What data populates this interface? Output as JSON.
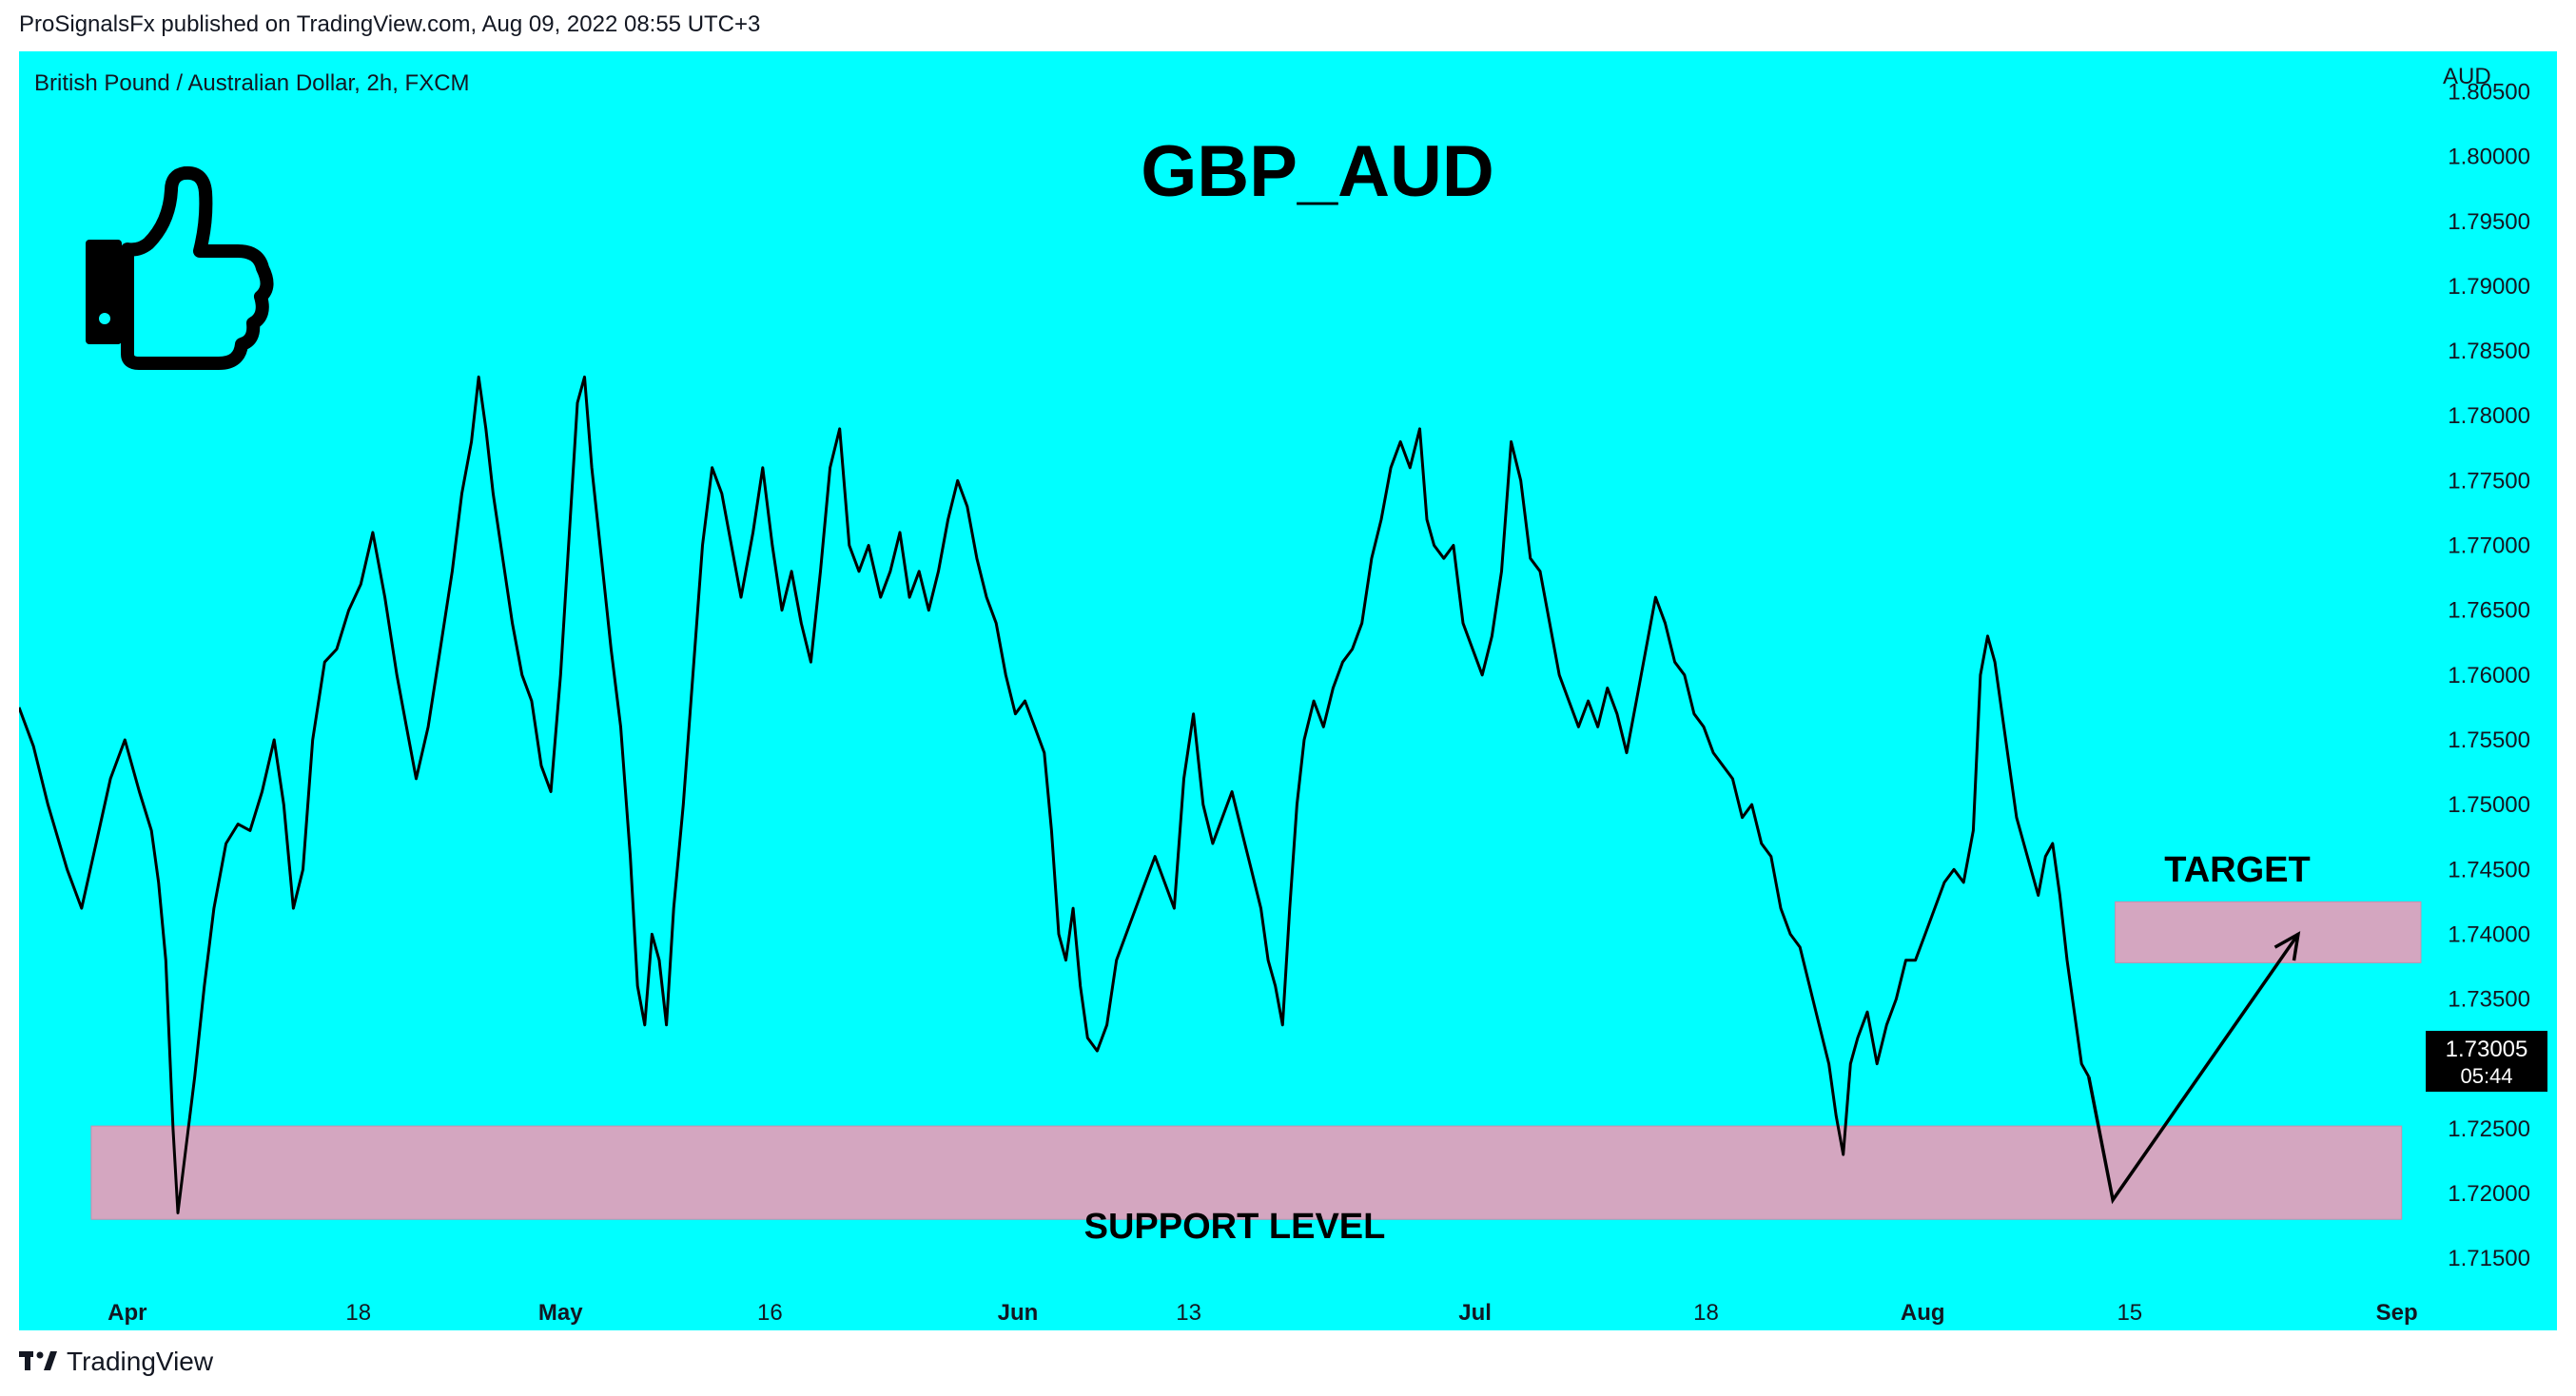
{
  "header": {
    "text": "ProSignalsFx published on TradingView.com, Aug 09, 2022 08:55 UTC+3"
  },
  "footer": {
    "brand": "TradingView",
    "logo_icon": "tradingview-logo-icon"
  },
  "chart_data": {
    "type": "line",
    "symbol_label": "British Pound / Australian Dollar, 2h, FXCM",
    "title": "GBP_AUD",
    "currency": "AUD",
    "ylim": [
      1.712,
      1.8068
    ],
    "y_ticks": [
      "1.80500",
      "1.80000",
      "1.79500",
      "1.79000",
      "1.78500",
      "1.78000",
      "1.77500",
      "1.77000",
      "1.76500",
      "1.76000",
      "1.75500",
      "1.75000",
      "1.74500",
      "1.74000",
      "1.73500",
      "1.73000",
      "1.72500",
      "1.72000",
      "1.71500"
    ],
    "x_ticks": [
      {
        "label": "Apr",
        "t": 0.045,
        "bold": true
      },
      {
        "label": "18",
        "t": 0.141,
        "bold": false
      },
      {
        "label": "May",
        "t": 0.225,
        "bold": true
      },
      {
        "label": "16",
        "t": 0.312,
        "bold": false
      },
      {
        "label": "Jun",
        "t": 0.415,
        "bold": true
      },
      {
        "label": "13",
        "t": 0.486,
        "bold": false
      },
      {
        "label": "Jul",
        "t": 0.605,
        "bold": true
      },
      {
        "label": "18",
        "t": 0.701,
        "bold": false
      },
      {
        "label": "Aug",
        "t": 0.791,
        "bold": true
      },
      {
        "label": "15",
        "t": 0.877,
        "bold": false
      },
      {
        "label": "Sep",
        "t": 0.988,
        "bold": true
      }
    ],
    "price_line": [
      [
        0.0,
        1.7575
      ],
      [
        0.006,
        1.7545
      ],
      [
        0.012,
        1.75
      ],
      [
        0.02,
        1.745
      ],
      [
        0.026,
        1.742
      ],
      [
        0.032,
        1.747
      ],
      [
        0.038,
        1.752
      ],
      [
        0.044,
        1.755
      ],
      [
        0.05,
        1.751
      ],
      [
        0.055,
        1.748
      ],
      [
        0.058,
        1.744
      ],
      [
        0.061,
        1.738
      ],
      [
        0.064,
        1.725
      ],
      [
        0.066,
        1.7185
      ],
      [
        0.069,
        1.723
      ],
      [
        0.073,
        1.729
      ],
      [
        0.077,
        1.736
      ],
      [
        0.081,
        1.742
      ],
      [
        0.086,
        1.747
      ],
      [
        0.091,
        1.7485
      ],
      [
        0.096,
        1.748
      ],
      [
        0.101,
        1.751
      ],
      [
        0.106,
        1.755
      ],
      [
        0.11,
        1.75
      ],
      [
        0.114,
        1.742
      ],
      [
        0.118,
        1.745
      ],
      [
        0.122,
        1.755
      ],
      [
        0.127,
        1.761
      ],
      [
        0.132,
        1.762
      ],
      [
        0.137,
        1.765
      ],
      [
        0.142,
        1.767
      ],
      [
        0.147,
        1.771
      ],
      [
        0.152,
        1.766
      ],
      [
        0.157,
        1.76
      ],
      [
        0.161,
        1.756
      ],
      [
        0.165,
        1.752
      ],
      [
        0.17,
        1.756
      ],
      [
        0.175,
        1.762
      ],
      [
        0.18,
        1.768
      ],
      [
        0.184,
        1.774
      ],
      [
        0.188,
        1.778
      ],
      [
        0.191,
        1.783
      ],
      [
        0.194,
        1.779
      ],
      [
        0.197,
        1.774
      ],
      [
        0.201,
        1.769
      ],
      [
        0.205,
        1.764
      ],
      [
        0.209,
        1.76
      ],
      [
        0.213,
        1.758
      ],
      [
        0.217,
        1.753
      ],
      [
        0.221,
        1.751
      ],
      [
        0.225,
        1.76
      ],
      [
        0.229,
        1.772
      ],
      [
        0.232,
        1.781
      ],
      [
        0.235,
        1.783
      ],
      [
        0.238,
        1.776
      ],
      [
        0.242,
        1.769
      ],
      [
        0.246,
        1.762
      ],
      [
        0.25,
        1.756
      ],
      [
        0.254,
        1.746
      ],
      [
        0.257,
        1.736
      ],
      [
        0.26,
        1.733
      ],
      [
        0.263,
        1.74
      ],
      [
        0.266,
        1.738
      ],
      [
        0.269,
        1.733
      ],
      [
        0.272,
        1.742
      ],
      [
        0.276,
        1.75
      ],
      [
        0.28,
        1.76
      ],
      [
        0.284,
        1.77
      ],
      [
        0.288,
        1.776
      ],
      [
        0.292,
        1.774
      ],
      [
        0.296,
        1.77
      ],
      [
        0.3,
        1.766
      ],
      [
        0.305,
        1.771
      ],
      [
        0.309,
        1.776
      ],
      [
        0.313,
        1.77
      ],
      [
        0.317,
        1.765
      ],
      [
        0.321,
        1.768
      ],
      [
        0.325,
        1.764
      ],
      [
        0.329,
        1.761
      ],
      [
        0.333,
        1.768
      ],
      [
        0.337,
        1.776
      ],
      [
        0.341,
        1.779
      ],
      [
        0.345,
        1.77
      ],
      [
        0.349,
        1.768
      ],
      [
        0.353,
        1.77
      ],
      [
        0.358,
        1.766
      ],
      [
        0.362,
        1.768
      ],
      [
        0.366,
        1.771
      ],
      [
        0.37,
        1.766
      ],
      [
        0.374,
        1.768
      ],
      [
        0.378,
        1.765
      ],
      [
        0.382,
        1.768
      ],
      [
        0.386,
        1.772
      ],
      [
        0.39,
        1.775
      ],
      [
        0.394,
        1.773
      ],
      [
        0.398,
        1.769
      ],
      [
        0.402,
        1.766
      ],
      [
        0.406,
        1.764
      ],
      [
        0.41,
        1.76
      ],
      [
        0.414,
        1.757
      ],
      [
        0.418,
        1.758
      ],
      [
        0.422,
        1.756
      ],
      [
        0.426,
        1.754
      ],
      [
        0.429,
        1.748
      ],
      [
        0.432,
        1.74
      ],
      [
        0.435,
        1.738
      ],
      [
        0.438,
        1.742
      ],
      [
        0.441,
        1.736
      ],
      [
        0.444,
        1.732
      ],
      [
        0.448,
        1.731
      ],
      [
        0.452,
        1.733
      ],
      [
        0.456,
        1.738
      ],
      [
        0.46,
        1.74
      ],
      [
        0.464,
        1.742
      ],
      [
        0.468,
        1.744
      ],
      [
        0.472,
        1.746
      ],
      [
        0.476,
        1.744
      ],
      [
        0.48,
        1.742
      ],
      [
        0.484,
        1.752
      ],
      [
        0.488,
        1.757
      ],
      [
        0.492,
        1.75
      ],
      [
        0.496,
        1.747
      ],
      [
        0.5,
        1.749
      ],
      [
        0.504,
        1.751
      ],
      [
        0.508,
        1.748
      ],
      [
        0.512,
        1.745
      ],
      [
        0.516,
        1.742
      ],
      [
        0.519,
        1.738
      ],
      [
        0.522,
        1.736
      ],
      [
        0.525,
        1.733
      ],
      [
        0.528,
        1.742
      ],
      [
        0.531,
        1.75
      ],
      [
        0.534,
        1.755
      ],
      [
        0.538,
        1.758
      ],
      [
        0.542,
        1.756
      ],
      [
        0.546,
        1.759
      ],
      [
        0.55,
        1.761
      ],
      [
        0.554,
        1.762
      ],
      [
        0.558,
        1.764
      ],
      [
        0.562,
        1.769
      ],
      [
        0.566,
        1.772
      ],
      [
        0.57,
        1.776
      ],
      [
        0.574,
        1.778
      ],
      [
        0.578,
        1.776
      ],
      [
        0.582,
        1.779
      ],
      [
        0.585,
        1.772
      ],
      [
        0.588,
        1.77
      ],
      [
        0.592,
        1.769
      ],
      [
        0.596,
        1.77
      ],
      [
        0.6,
        1.764
      ],
      [
        0.604,
        1.762
      ],
      [
        0.608,
        1.76
      ],
      [
        0.612,
        1.763
      ],
      [
        0.616,
        1.768
      ],
      [
        0.62,
        1.778
      ],
      [
        0.624,
        1.775
      ],
      [
        0.628,
        1.769
      ],
      [
        0.632,
        1.768
      ],
      [
        0.636,
        1.764
      ],
      [
        0.64,
        1.76
      ],
      [
        0.644,
        1.758
      ],
      [
        0.648,
        1.756
      ],
      [
        0.652,
        1.758
      ],
      [
        0.656,
        1.756
      ],
      [
        0.66,
        1.759
      ],
      [
        0.664,
        1.757
      ],
      [
        0.668,
        1.754
      ],
      [
        0.672,
        1.758
      ],
      [
        0.676,
        1.762
      ],
      [
        0.68,
        1.766
      ],
      [
        0.684,
        1.764
      ],
      [
        0.688,
        1.761
      ],
      [
        0.692,
        1.76
      ],
      [
        0.696,
        1.757
      ],
      [
        0.7,
        1.756
      ],
      [
        0.704,
        1.754
      ],
      [
        0.708,
        1.753
      ],
      [
        0.712,
        1.752
      ],
      [
        0.716,
        1.749
      ],
      [
        0.72,
        1.75
      ],
      [
        0.724,
        1.747
      ],
      [
        0.728,
        1.746
      ],
      [
        0.732,
        1.742
      ],
      [
        0.736,
        1.74
      ],
      [
        0.74,
        1.739
      ],
      [
        0.744,
        1.736
      ],
      [
        0.748,
        1.733
      ],
      [
        0.752,
        1.73
      ],
      [
        0.755,
        1.726
      ],
      [
        0.758,
        1.723
      ],
      [
        0.761,
        1.73
      ],
      [
        0.764,
        1.732
      ],
      [
        0.768,
        1.734
      ],
      [
        0.772,
        1.73
      ],
      [
        0.776,
        1.733
      ],
      [
        0.78,
        1.735
      ],
      [
        0.784,
        1.738
      ],
      [
        0.788,
        1.738
      ],
      [
        0.792,
        1.74
      ],
      [
        0.796,
        1.742
      ],
      [
        0.8,
        1.744
      ],
      [
        0.804,
        1.745
      ],
      [
        0.808,
        1.744
      ],
      [
        0.812,
        1.748
      ],
      [
        0.815,
        1.76
      ],
      [
        0.818,
        1.763
      ],
      [
        0.821,
        1.761
      ],
      [
        0.824,
        1.757
      ],
      [
        0.827,
        1.753
      ],
      [
        0.83,
        1.749
      ],
      [
        0.833,
        1.747
      ],
      [
        0.836,
        1.745
      ],
      [
        0.839,
        1.743
      ],
      [
        0.842,
        1.746
      ],
      [
        0.845,
        1.747
      ],
      [
        0.848,
        1.743
      ],
      [
        0.851,
        1.738
      ],
      [
        0.854,
        1.734
      ],
      [
        0.857,
        1.73
      ],
      [
        0.86,
        1.729
      ]
    ],
    "projection_path": [
      [
        0.86,
        1.729
      ],
      [
        0.87,
        1.7195
      ],
      [
        0.947,
        1.74
      ]
    ],
    "support_zone": {
      "label": "SUPPORT LEVEL",
      "y_range": [
        1.718,
        1.7252
      ],
      "t_range": [
        0.03,
        0.99
      ]
    },
    "target_zone": {
      "label": "TARGET",
      "y_range": [
        1.7378,
        1.7425
      ],
      "t_range": [
        0.871,
        0.998
      ]
    },
    "last_price": {
      "value": "1.73005",
      "countdown": "05:44"
    }
  },
  "colors": {
    "background": "#00ffff",
    "zone": "#d4a6c0",
    "line": "#000000",
    "label_bg": "#000000",
    "label_fg": "#ffffff"
  },
  "icons": {
    "thumbs_up": "thumbs-up-icon"
  }
}
